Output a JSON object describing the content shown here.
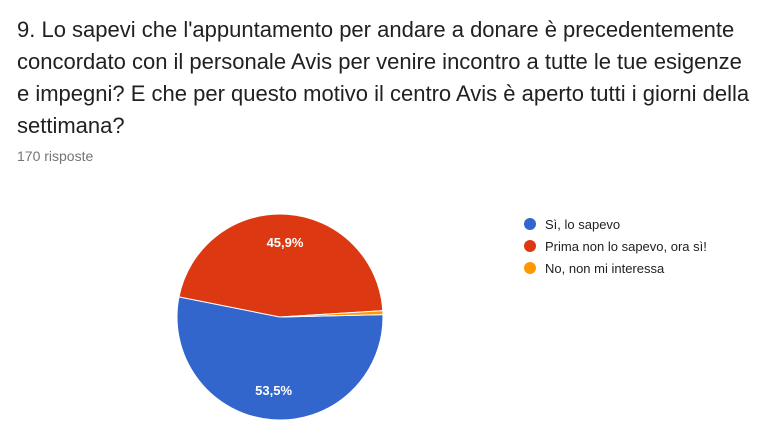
{
  "question": {
    "title": "9. Lo sapevi che l'appuntamento per andare a donare è precedentemente concordato con il personale Avis per venire incontro a tutte le tue esigenze e impegni? E che per questo motivo il centro Avis è aperto tutti i giorni della settimana?",
    "responses": "170 risposte"
  },
  "chart_data": {
    "type": "pie",
    "categories": [
      "Sì, lo sapevo",
      "Prima non lo sapevo, ora sì!",
      "No, non mi interessa"
    ],
    "values": [
      53.5,
      45.9,
      0.6
    ],
    "labels": [
      "53,5%",
      "45,9%",
      ""
    ],
    "colors": [
      "#3366cc",
      "#dc3912",
      "#ff9900"
    ],
    "legend_position": "right"
  }
}
